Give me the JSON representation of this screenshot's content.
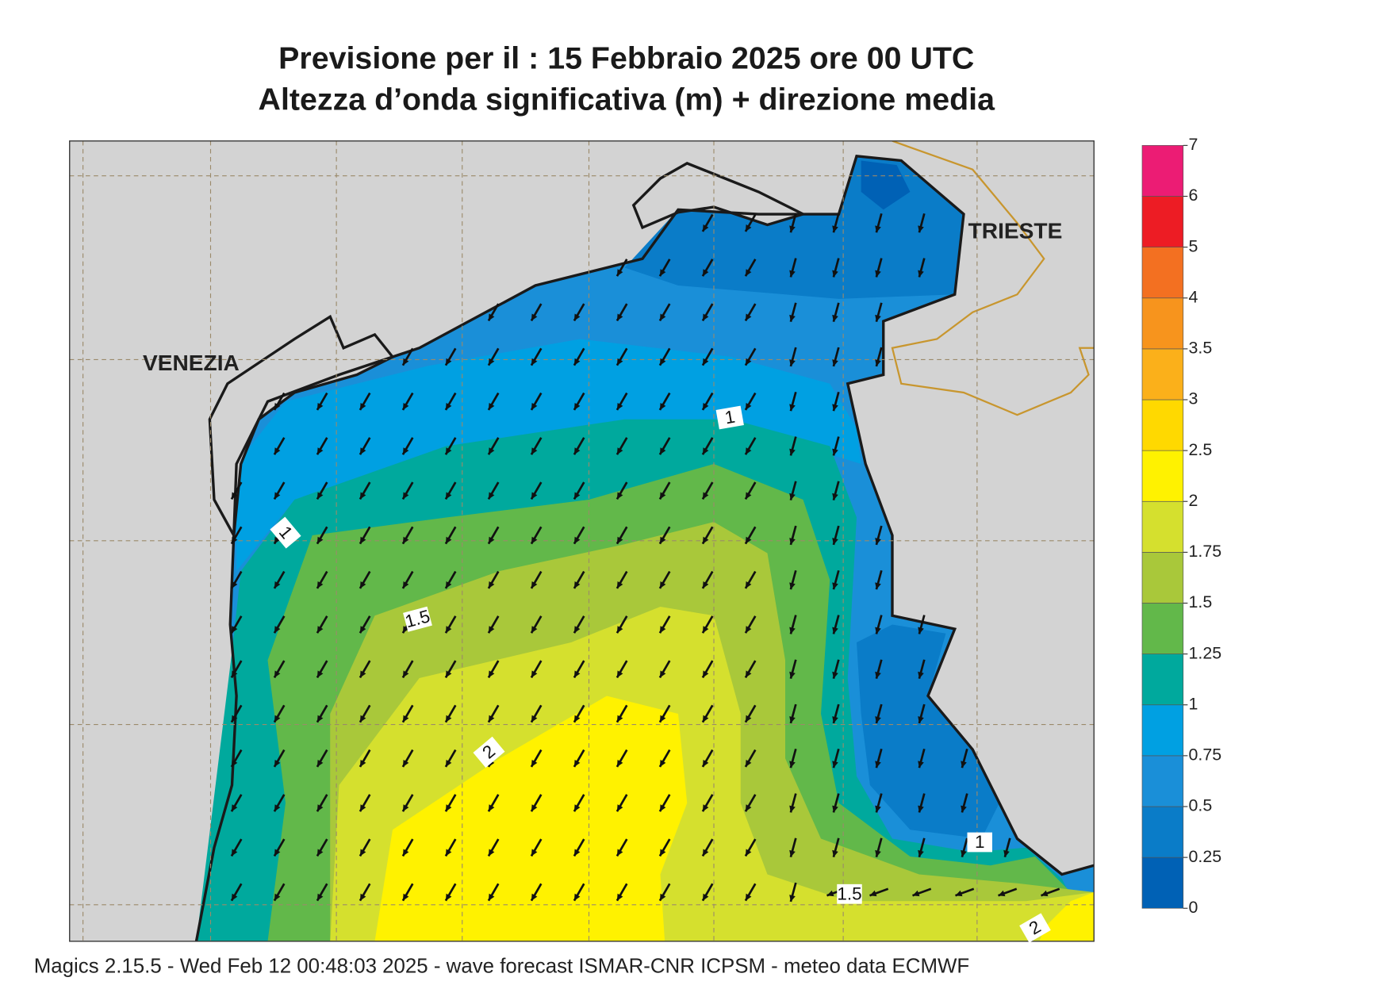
{
  "header": {
    "title_line1": "Previsione per il  :  15  Febbraio 2025   ore 00 UTC",
    "title_line2": "Altezza d’onda significativa (m) + direzione media"
  },
  "map": {
    "cities": [
      "VENEZIA",
      "TRIESTE"
    ],
    "contour_labels": [
      "1",
      "1",
      "1.5",
      "2",
      "1",
      "1.5",
      "2"
    ]
  },
  "legend": {
    "levels": [
      0,
      0.25,
      0.5,
      0.75,
      1,
      1.25,
      1.5,
      1.75,
      2,
      2.5,
      3,
      3.5,
      4,
      5,
      6,
      7
    ],
    "colors": [
      "#0061b5",
      "#0a7cc8",
      "#1a8fd8",
      "#00a0e2",
      "#00a99d",
      "#62b84a",
      "#a9c83a",
      "#d5e02e",
      "#fff200",
      "#ffd900",
      "#fbb01a",
      "#f7941d",
      "#f37021",
      "#ed1c24",
      "#ec1c74"
    ]
  },
  "footer": {
    "text": "Magics 2.15.5 - Wed Feb 12 00:48:03 2025 - wave forecast  ISMAR-CNR  ICPSM - meteo data   ECMWF"
  }
}
